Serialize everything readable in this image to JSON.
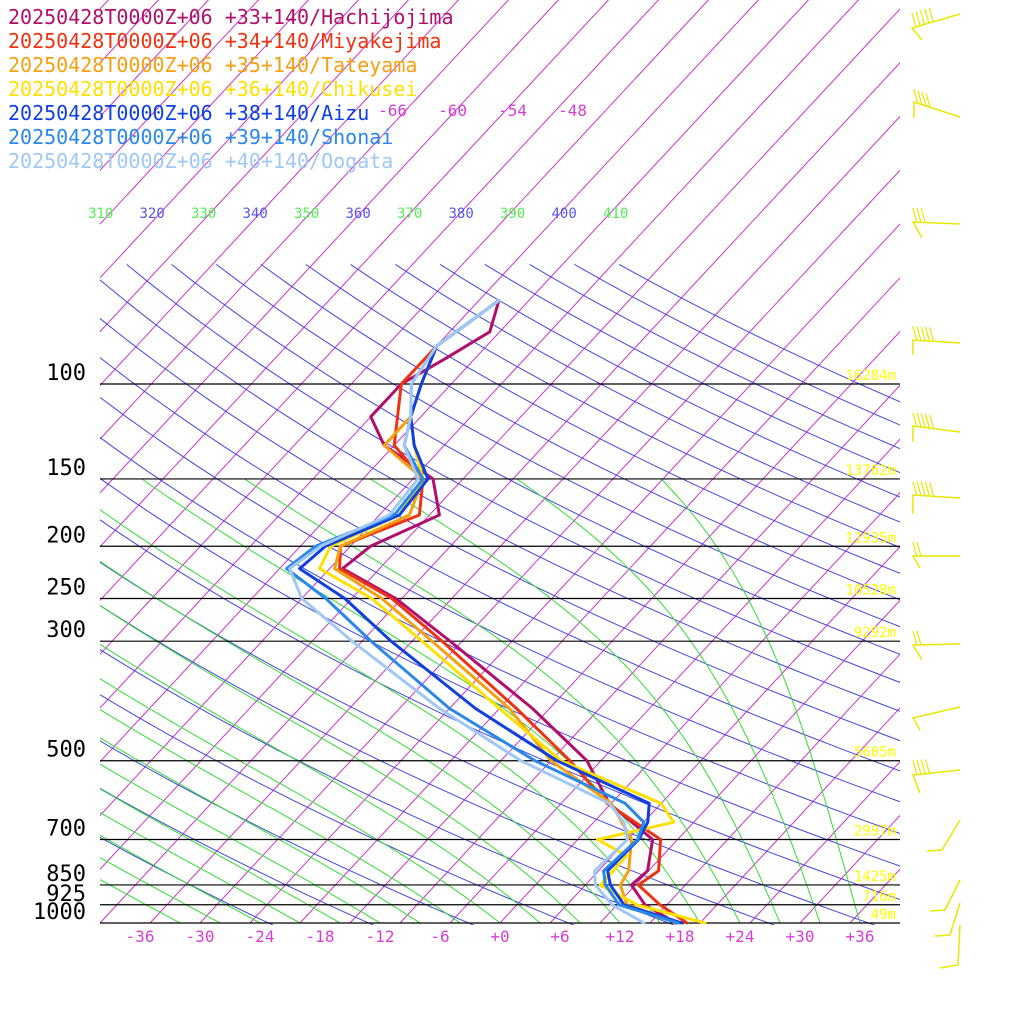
{
  "colors": {
    "isobar": "#000000",
    "isotherm": "#cc33cc",
    "dry_adiabat": "#4444dd",
    "moist_adiabat": "#33dd33",
    "height_label": "#ffff00",
    "barb": "#e8e800",
    "temp_label": "#dd55dd",
    "theta_dry": "#5555ee",
    "theta_moist": "#55ee55"
  },
  "chart_data": {
    "type": "line",
    "subtype": "skew-T log-P sounding",
    "y_axis": {
      "unit": "hPa",
      "scale": "log",
      "range": [
        1000,
        100
      ]
    },
    "x_axis": {
      "unit": "°C",
      "range": [
        -40,
        40
      ]
    },
    "isobar_labels": [
      "100",
      "150",
      "200",
      "250",
      "300",
      "500",
      "700",
      "850",
      "925",
      "1000"
    ],
    "isobars": [
      100,
      150,
      200,
      250,
      300,
      500,
      700,
      850,
      925,
      1000
    ],
    "temp_tick_labels": [
      "-36",
      "-30",
      "-24",
      "-18",
      "-12",
      "-6",
      "+0",
      "+6",
      "+12",
      "+18",
      "+24",
      "+30",
      "+36"
    ],
    "temp_ticks": [
      -36,
      -30,
      -24,
      -18,
      -12,
      -6,
      0,
      6,
      12,
      18,
      24,
      30,
      36
    ],
    "upper_temp_labels": [
      "-66",
      "-60",
      "-54",
      "-48"
    ],
    "upper_temp_ticks": [
      -66,
      -60,
      -54,
      -48
    ],
    "theta_labels": [
      "310",
      "320",
      "330",
      "340",
      "350",
      "360",
      "370",
      "380",
      "390",
      "400",
      "410"
    ],
    "height_labels": [
      {
        "p": 100,
        "text": "16284m"
      },
      {
        "p": 150,
        "text": "13762m"
      },
      {
        "p": 200,
        "text": "11935m"
      },
      {
        "p": 250,
        "text": "10528m"
      },
      {
        "p": 300,
        "text": "9292m"
      },
      {
        "p": 500,
        "text": "5605m"
      },
      {
        "p": 700,
        "text": "2997m"
      },
      {
        "p": 850,
        "text": "1425m"
      },
      {
        "p": 925,
        "text": "716m"
      },
      {
        "p": 1000,
        "text": "49m"
      }
    ],
    "series": [
      {
        "name": "20250428T0000Z+06 +33+140/Hachijojima",
        "color": "#b0106b",
        "p": [
          1000,
          925,
          850,
          800,
          700,
          600,
          500,
          400,
          300,
          250,
          220,
          200,
          175,
          150,
          130,
          115,
          100,
          90,
          80,
          70
        ],
        "t": [
          17.6,
          12.8,
          9.6,
          9.9,
          7.5,
          -0.2,
          -6.4,
          -16.7,
          -31.2,
          -40.6,
          -48.7,
          -48.0,
          -44.0,
          -48.0,
          -56.0,
          -60.0,
          -60.0,
          -58.0,
          -56.0,
          -58.0
        ]
      },
      {
        "name": "20250428T0000Z+06 +34+140/Miyakejima",
        "color": "#ee3311",
        "p": [
          1000,
          925,
          850,
          800,
          700,
          600,
          500,
          400,
          300,
          250,
          220,
          200,
          175,
          150,
          130,
          100,
          85,
          70
        ],
        "t": [
          18.7,
          14.3,
          10.3,
          11.0,
          8.3,
          -0.4,
          -8.1,
          -18.3,
          -32.0,
          -41.0,
          -49.0,
          -51.0,
          -46.0,
          -49.0,
          -55.0,
          -60.0,
          -60.0,
          -58.0
        ]
      },
      {
        "name": "20250428T0000Z+06 +35+140/Tateyama",
        "color": "#f5a010",
        "p": [
          1000,
          925,
          850,
          800,
          700,
          600,
          500,
          400,
          300,
          250,
          220,
          200,
          175,
          150,
          130,
          115,
          100,
          85,
          70
        ],
        "t": [
          18.0,
          11.0,
          8.5,
          8.0,
          5.4,
          0.0,
          -10.0,
          -19.0,
          -33.0,
          -42.0,
          -49.5,
          -51.0,
          -47.0,
          -49.0,
          -56.0,
          -56.0,
          -58.0,
          -60.0,
          -58.0
        ]
      },
      {
        "name": "20250428T0000Z+06 +36+140/Chikusei",
        "color": "#ffe000",
        "p": [
          1000,
          925,
          850,
          750,
          700,
          650,
          600,
          500,
          400,
          300,
          250,
          220,
          200,
          175,
          150,
          130,
          115,
          100,
          85,
          70
        ],
        "t": [
          20.5,
          12.0,
          6.5,
          6.4,
          2.0,
          8.0,
          5.0,
          -9.0,
          -20.0,
          -34.0,
          -43.0,
          -51.0,
          -52.0,
          -48.0,
          -49.0,
          -53.0,
          -56.0,
          -58.0,
          -60.0,
          -58.0
        ]
      },
      {
        "name": "20250428T0000Z+06 +38+140/Aizu",
        "color": "#1040dd",
        "p": [
          1000,
          925,
          850,
          800,
          700,
          650,
          600,
          500,
          400,
          300,
          250,
          220,
          200,
          175,
          150,
          130,
          115,
          100,
          85,
          70
        ],
        "t": [
          18.2,
          10.7,
          7.5,
          5.9,
          6.1,
          5.4,
          3.8,
          -9.4,
          -22.4,
          -37.1,
          -45.7,
          -53.0,
          -52.5,
          -48.0,
          -48.5,
          -53.0,
          -56.0,
          -58.0,
          -60.0,
          -58.0
        ]
      },
      {
        "name": "20250428T0000Z+06 +39+140/Shonai",
        "color": "#2a88e8",
        "p": [
          1000,
          925,
          850,
          800,
          700,
          650,
          600,
          500,
          400,
          300,
          250,
          220,
          200,
          175,
          150,
          130,
          115,
          100,
          85,
          70
        ],
        "t": [
          17.8,
          10.2,
          7.0,
          5.5,
          6.0,
          5.0,
          1.4,
          -11.6,
          -25.0,
          -39.1,
          -47.6,
          -54.3,
          -53.5,
          -48.5,
          -49.0,
          -54.0,
          -56.0,
          -59.0,
          -60.0,
          -58.0
        ]
      },
      {
        "name": "20250428T0000Z+06 +40+140/Oogata",
        "color": "#a0c8f5",
        "p": [
          1000,
          925,
          850,
          800,
          700,
          650,
          600,
          500,
          400,
          300,
          250,
          220,
          200,
          175,
          150,
          130,
          115,
          100,
          85,
          70
        ],
        "t": [
          14.4,
          9.5,
          6.0,
          4.6,
          5.0,
          3.0,
          -0.2,
          -13.0,
          -26.0,
          -41.0,
          -50.0,
          -54.0,
          -53.0,
          -49.0,
          -49.5,
          -54.0,
          -56.0,
          -59.0,
          -60.0,
          -58.0
        ]
      }
    ],
    "legend_position": "top-left",
    "grid": true
  }
}
